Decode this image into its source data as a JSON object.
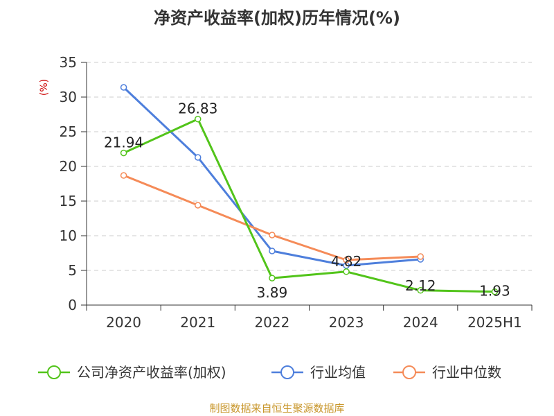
{
  "chart_data": {
    "type": "line",
    "title": "净资产收益率(加权)历年情况(%)",
    "ylabel": "(%)",
    "xlabel": "",
    "categories": [
      "2020",
      "2021",
      "2022",
      "2023",
      "2024",
      "2025H1"
    ],
    "ylim": [
      0,
      35
    ],
    "yticks": [
      0,
      5,
      10,
      15,
      20,
      25,
      30,
      35
    ],
    "grid": "horizontal dashed",
    "legend_position": "bottom",
    "series": [
      {
        "name": "公司净资产收益率(加权)",
        "color": "#52c41a",
        "values": [
          21.94,
          26.83,
          3.89,
          4.82,
          2.12,
          1.93
        ],
        "labels": [
          "21.94",
          "26.83",
          "3.89",
          "4.82",
          "2.12",
          "1.93"
        ]
      },
      {
        "name": "行业均值",
        "color": "#4e7fdc",
        "values": [
          31.4,
          21.3,
          7.8,
          5.7,
          6.6,
          null
        ]
      },
      {
        "name": "行业中位数",
        "color": "#f58b58",
        "values": [
          18.7,
          14.4,
          10.1,
          6.5,
          7.0,
          null
        ]
      }
    ]
  },
  "colors": {
    "ylabel": "#cc0000",
    "source": "#c8962a",
    "axis": "#333333",
    "grid": "#cccccc"
  },
  "source": "制图数据来自恒生聚源数据库"
}
